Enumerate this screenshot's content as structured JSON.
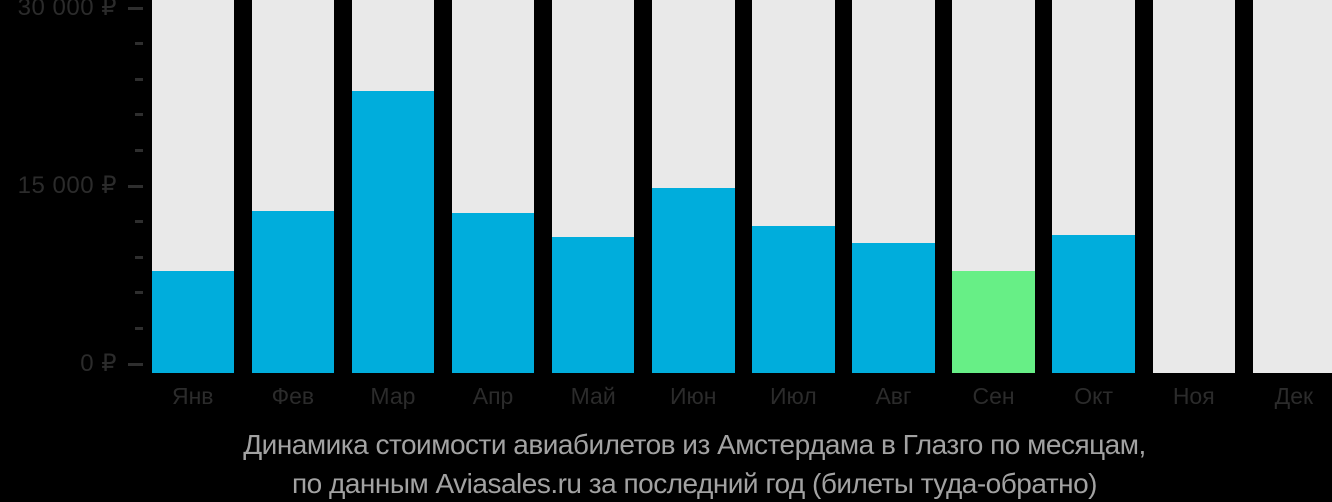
{
  "chart_data": {
    "type": "bar",
    "title_line1": "Динамика стоимости авиабилетов из Амстердама в Глазго по месяцам,",
    "title_line2": "по данным Aviasales.ru за последний год (билеты туда-обратно)",
    "categories": [
      "Янв",
      "Фев",
      "Мар",
      "Апр",
      "Май",
      "Июн",
      "Июл",
      "Авг",
      "Сен",
      "Окт",
      "Ноя",
      "Дек"
    ],
    "values": [
      8400,
      13300,
      23200,
      13200,
      11200,
      15200,
      12100,
      10700,
      8400,
      11400,
      null,
      null
    ],
    "highlight_index": 8,
    "highlight_category": "Сен",
    "currency": "₽",
    "xlabel": "",
    "ylabel": "",
    "ylim": [
      0,
      30000
    ],
    "y_ticks": [
      {
        "value": 0,
        "label": "0 ₽"
      },
      {
        "value": 15000,
        "label": "15 000 ₽"
      },
      {
        "value": 30000,
        "label": "30 000 ₽"
      }
    ],
    "minor_tick_step": 3000,
    "grid": false,
    "legend": "none",
    "colors": {
      "bar": "#00ADDC",
      "highlight_bar": "#67EF86",
      "column_background": "#E9E9E9",
      "axis_text": "#2B2B2B",
      "tick": "#2E2E2E",
      "title_text": "#A2A2A2",
      "page_background": "#000000"
    }
  }
}
